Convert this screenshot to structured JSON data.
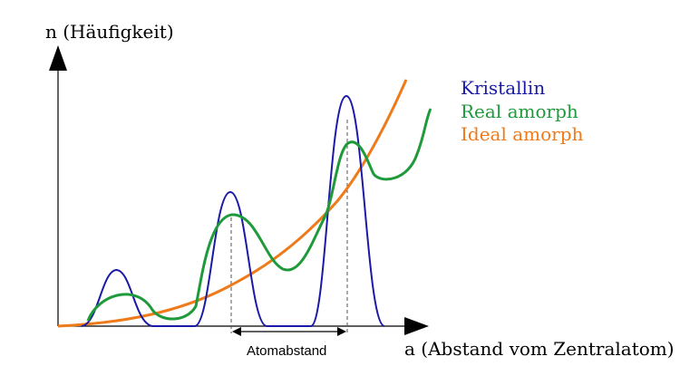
{
  "diagram": {
    "y_axis_label": "n (Häufigkeit)",
    "x_axis_label": "a (Abstand vom Zentralatom)",
    "distance_label": "Atomabstand",
    "legend": [
      {
        "label": "Kristallin",
        "color": "#1a1aa6"
      },
      {
        "label": "Real amorph",
        "color": "#1f9a3a"
      },
      {
        "label": "Ideal amorph",
        "color": "#ef7a1a"
      }
    ],
    "colors": {
      "axis": "#000000",
      "kristallin": "#1a1aa6",
      "real_amorph": "#1f9a3a",
      "ideal_amorph": "#ef7a1a",
      "guide": "#555555"
    }
  }
}
